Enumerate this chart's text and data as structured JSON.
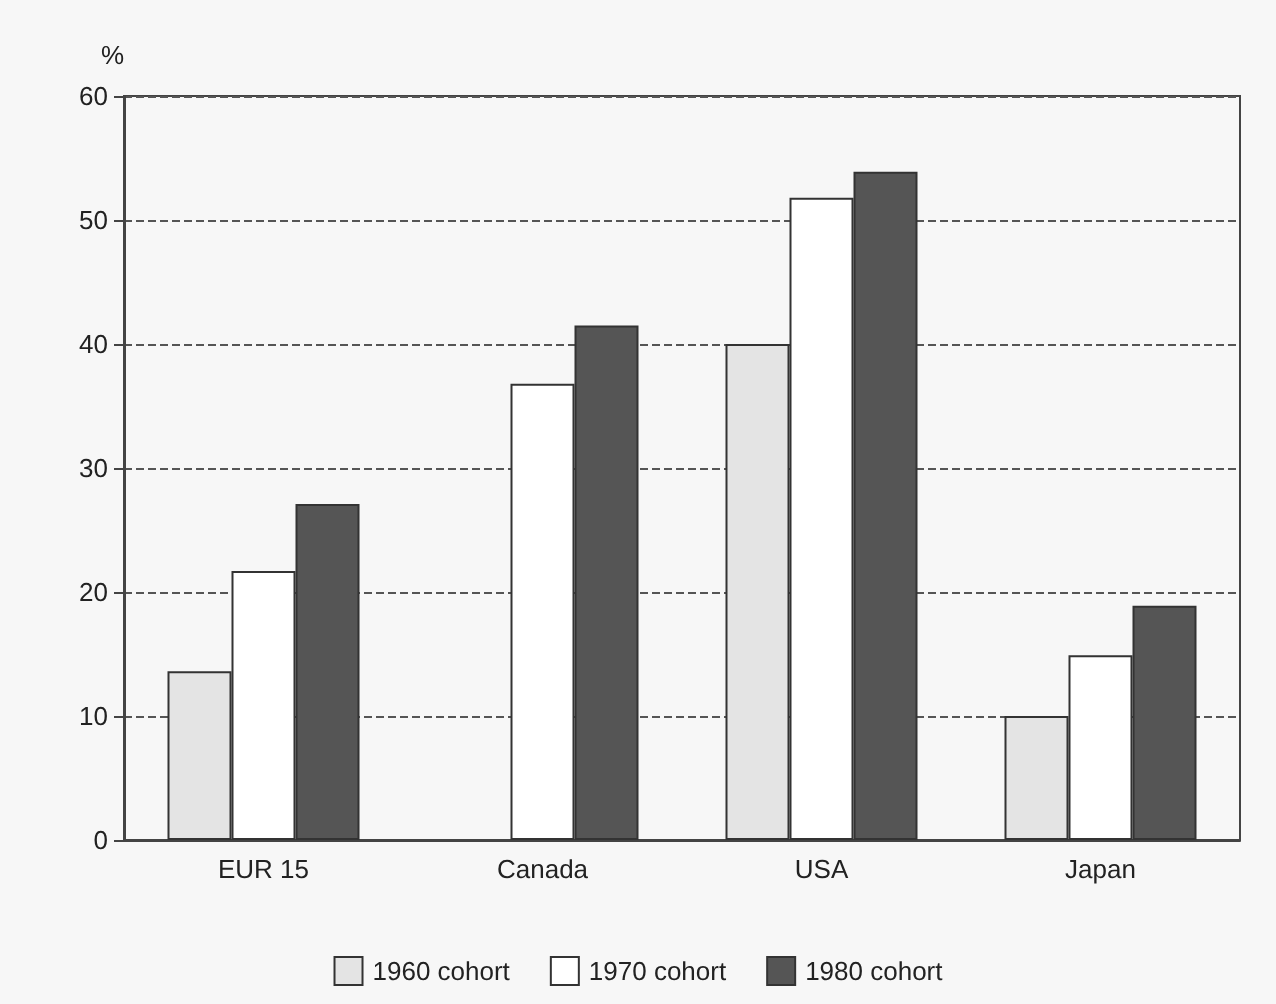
{
  "chart_data": {
    "type": "bar",
    "ylabel": "%",
    "categories": [
      "EUR 15",
      "Canada",
      "USA",
      "Japan"
    ],
    "series": [
      {
        "name": "1960 cohort",
        "color": "#e4e4e4",
        "values": [
          13.6,
          null,
          40,
          10
        ]
      },
      {
        "name": "1970 cohort",
        "color": "#ffffff",
        "values": [
          21.7,
          36.8,
          51.8,
          14.9
        ]
      },
      {
        "name": "1980 cohort",
        "color": "#555555",
        "values": [
          27.1,
          41.5,
          53.9,
          18.9
        ]
      }
    ],
    "ylim": [
      0,
      60
    ],
    "yticks": [
      0,
      10,
      20,
      30,
      40,
      50,
      60
    ],
    "grid": "y",
    "legend": "bottom"
  }
}
